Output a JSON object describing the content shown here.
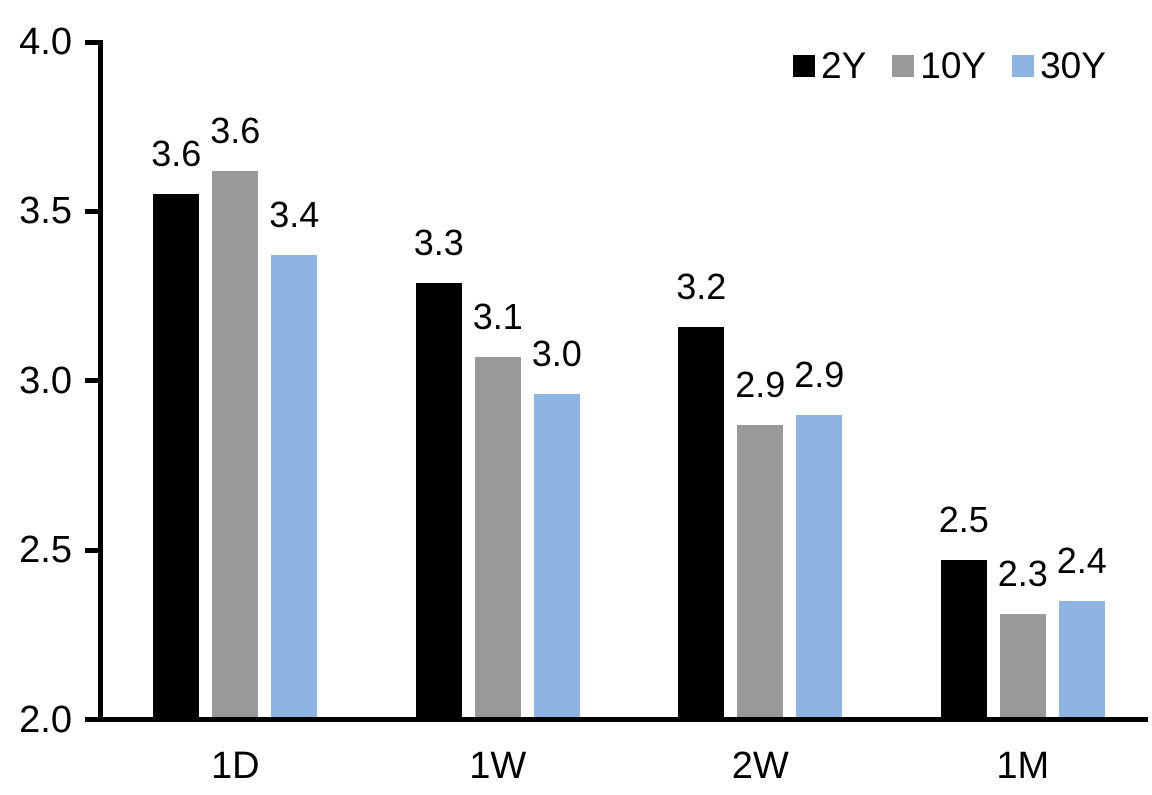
{
  "chart_data": {
    "type": "bar",
    "title": "",
    "categories": [
      "1D",
      "1W",
      "2W",
      "1M"
    ],
    "series": [
      {
        "name": "2Y",
        "color": "#000000",
        "values": [
          3.55,
          3.29,
          3.16,
          2.47
        ],
        "labels": [
          "3.6",
          "3.3",
          "3.2",
          "2.5"
        ]
      },
      {
        "name": "10Y",
        "color": "#999999",
        "values": [
          3.62,
          3.07,
          2.87,
          2.31
        ],
        "labels": [
          "3.6",
          "3.1",
          "2.9",
          "2.3"
        ]
      },
      {
        "name": "30Y",
        "color": "#8DB4E2",
        "values": [
          3.37,
          2.96,
          2.9,
          2.35
        ],
        "labels": [
          "3.4",
          "3.0",
          "2.9",
          "2.4"
        ]
      }
    ],
    "y_axis": {
      "min": 2.0,
      "max": 4.0,
      "step": 0.5,
      "tick_labels": [
        "2.0",
        "2.5",
        "3.0",
        "3.5",
        "4.0"
      ]
    },
    "x_axis": {
      "tick_labels": [
        "1D",
        "1W",
        "2W",
        "1M"
      ]
    },
    "legend": {
      "position": "top-right",
      "entries": [
        "2Y",
        "10Y",
        "30Y"
      ]
    },
    "grid": false,
    "axis_color": "#000000",
    "label_color": "#000000",
    "background": "#ffffff"
  }
}
